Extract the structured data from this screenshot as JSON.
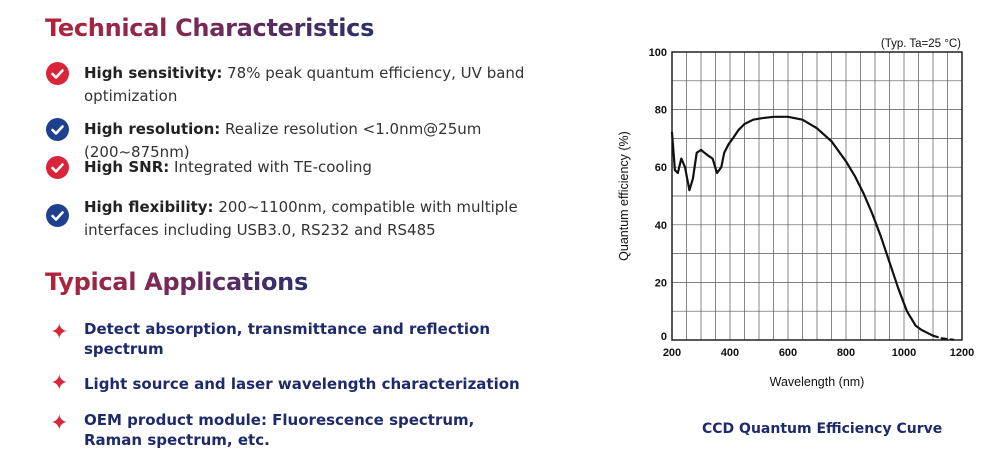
{
  "tech": {
    "title": "Technical Characteristics",
    "items": [
      {
        "label": "High sensitivity:",
        "text": " 78% peak quantum efficiency, UV band optimization",
        "icon": "check-icon",
        "color": "#d8253a"
      },
      {
        "label": "High resolution:",
        "text": " Realize resolution <1.0nm@25um (200~875nm)",
        "icon": "check-icon",
        "color": "#1f3f8f"
      },
      {
        "label": "High SNR:",
        "text": " Integrated with TE-cooling",
        "icon": "check-icon",
        "color": "#d8253a"
      },
      {
        "label": "High flexibility:",
        "text": " 200~1100nm, compatible with multiple interfaces including USB3.0, RS232 and RS485",
        "icon": "check-icon",
        "color": "#1f3f8f"
      }
    ]
  },
  "apps": {
    "title": "Typical Applications",
    "items": [
      {
        "text": "Detect absorption, transmittance and reflection spectrum",
        "icon": "star-icon"
      },
      {
        "text": "Light source and laser wavelength characterization",
        "icon": "star-icon"
      },
      {
        "text": "OEM product module: Fluorescence spectrum, Raman spectrum, etc.",
        "icon": "star-icon"
      }
    ]
  },
  "chart_data": {
    "type": "line",
    "title": "",
    "caption": "CCD Quantum Efficiency Curve",
    "annotation": "(Typ. Ta=25 °C)",
    "xlabel": "Wavelength (nm)",
    "ylabel": "Quantum efficiency (%)",
    "xlim": [
      200,
      1200
    ],
    "ylim": [
      0,
      100
    ],
    "xticks": [
      200,
      400,
      600,
      800,
      1000,
      1200
    ],
    "yticks": [
      0,
      20,
      40,
      60,
      80,
      100
    ],
    "grid": true,
    "series": [
      {
        "style": "solid",
        "x": [
          200,
          210,
          220,
          232,
          245,
          260,
          272,
          285,
          300,
          312,
          325,
          340,
          355,
          370,
          380,
          395,
          410,
          430,
          450,
          480,
          510,
          550,
          600,
          650,
          700,
          750,
          800,
          830,
          860,
          890,
          920,
          950,
          980,
          1010,
          1040,
          1060,
          1080,
          1100
        ],
        "y": [
          72,
          59,
          58,
          63,
          60,
          52,
          56,
          65,
          66,
          65,
          64,
          63,
          58,
          60,
          65,
          68,
          70,
          73,
          75,
          76.5,
          77,
          77.5,
          77.5,
          76.5,
          73.5,
          69,
          62,
          57,
          51,
          44,
          36,
          27,
          18,
          10,
          5,
          3.5,
          2.5,
          1.5
        ]
      },
      {
        "style": "dashed",
        "x": [
          1100,
          1130,
          1160,
          1170
        ],
        "y": [
          1.5,
          0.6,
          0.2,
          0.1
        ]
      }
    ]
  },
  "colors": {
    "accent_red": "#d8253a",
    "accent_blue": "#1f3f8f",
    "text_navy": "#1f2a6b"
  }
}
